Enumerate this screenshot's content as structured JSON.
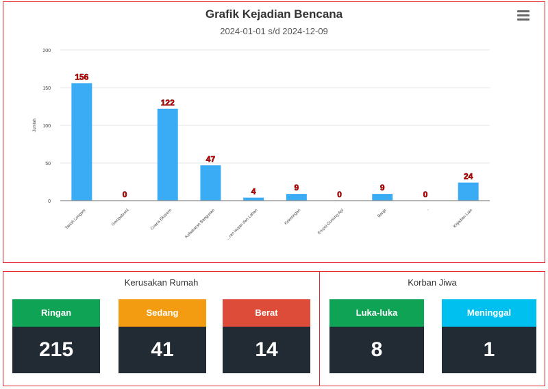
{
  "chart_data": {
    "type": "bar",
    "title": "Grafik Kejadian Bencana",
    "subtitle": "2024-01-01 s/d 2024-12-09",
    "ylabel": "Jumlah",
    "xlabel": "",
    "ylim": [
      0,
      200
    ],
    "yticks": [
      0,
      50,
      100,
      150,
      200
    ],
    "grid": true,
    "legend": "none",
    "bar_color": "#3aabf5",
    "label_color": "#d30000",
    "categories": [
      "Tanah Longsor",
      "Gempabumi",
      "Cuaca Ekstrem",
      "Kebakaran Bangunan",
      "...ran Hutan dan Lahan",
      "Kekeringan",
      "Erupsi Gunung Api",
      "Banjir",
      "-",
      "Kejadian Lain"
    ],
    "values": [
      156,
      0,
      122,
      47,
      4,
      9,
      0,
      9,
      0,
      24
    ]
  },
  "menu": {
    "icon": "hamburger-menu-icon"
  },
  "kerusakan_rumah": {
    "title": "Kerusakan Rumah",
    "items": [
      {
        "label": "Ringan",
        "value": "215",
        "color": "#0fa455"
      },
      {
        "label": "Sedang",
        "value": "41",
        "color": "#f39c11"
      },
      {
        "label": "Berat",
        "value": "14",
        "color": "#dd4b39"
      }
    ]
  },
  "korban_jiwa": {
    "title": "Korban Jiwa",
    "items": [
      {
        "label": "Luka-luka",
        "value": "8",
        "color": "#0fa455"
      },
      {
        "label": "Meninggal",
        "value": "1",
        "color": "#00c0ef"
      }
    ]
  }
}
